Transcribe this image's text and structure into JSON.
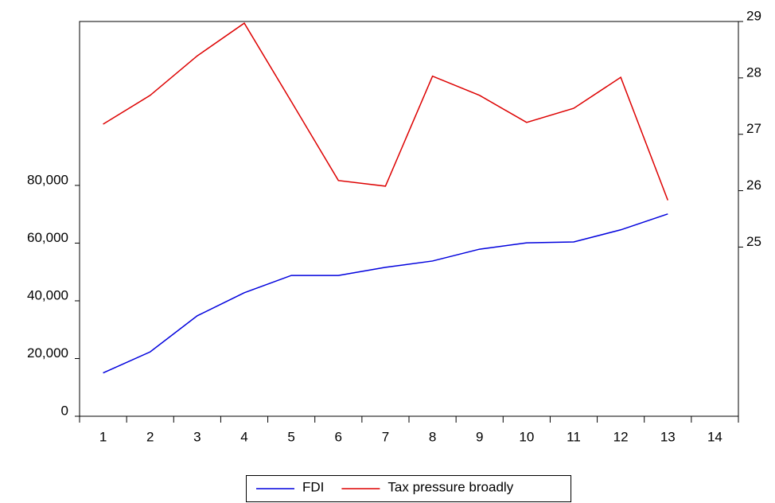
{
  "chart_data": {
    "type": "line",
    "categories": [
      "1",
      "2",
      "3",
      "4",
      "5",
      "6",
      "7",
      "8",
      "9",
      "10",
      "11",
      "12",
      "13",
      "14"
    ],
    "series": [
      {
        "name": "FDI",
        "color": "#0000dd",
        "values": [
          15000,
          22300,
          34800,
          42800,
          48800,
          48800,
          51600,
          53800,
          57900,
          60100,
          60400,
          64600,
          70100,
          null
        ]
      },
      {
        "name": "Tax pressure broadly",
        "color": "#dd0000",
        "axis": "y2",
        "values": [
          27.18,
          27.69,
          28.39,
          28.97,
          27.58,
          26.18,
          26.08,
          28.03,
          27.69,
          27.21,
          27.46,
          28.01,
          25.83,
          null
        ]
      }
    ],
    "ylim": [
      0,
      136800
    ],
    "yticks": [
      0,
      {
        "value": 20000,
        "label": "20,000"
      },
      {
        "value": 40000,
        "label": "40,000"
      },
      {
        "value": 60000,
        "label": "60,000"
      },
      {
        "value": 80000,
        "label": "80,000"
      }
    ],
    "y2lim": [
      22,
      29
    ],
    "y2ticks": [
      25,
      26,
      27,
      28,
      29
    ],
    "legend": "bottom"
  }
}
